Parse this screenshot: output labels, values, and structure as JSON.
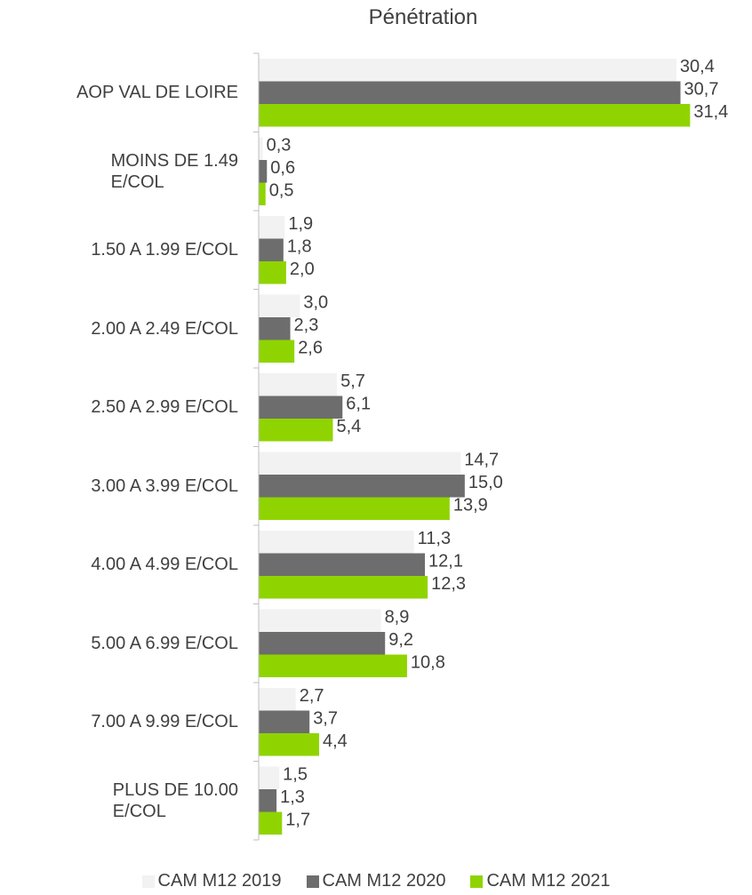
{
  "chart_data": {
    "type": "barh",
    "title": "Pénétration",
    "categories": [
      "AOP VAL DE LOIRE",
      "MOINS DE 1.49\nE/COL",
      "1.50 A 1.99 E/COL",
      "2.00 A 2.49 E/COL",
      "2.50 A 2.99 E/COL",
      "3.00 A 3.99 E/COL",
      "4.00 A 4.99 E/COL",
      "5.00 A 6.99 E/COL",
      "7.00 A 9.99 E/COL",
      "PLUS DE 10.00\nE/COL"
    ],
    "series": [
      {
        "name": "CAM M12 2019",
        "color": "#f2f2f2",
        "values": [
          30.4,
          0.3,
          1.9,
          3.0,
          5.7,
          14.7,
          11.3,
          8.9,
          2.7,
          1.5
        ],
        "value_labels": [
          "30,4",
          "0,3",
          "1,9",
          "3,0",
          "5,7",
          "14,7",
          "11,3",
          "8,9",
          "2,7",
          "1,5"
        ]
      },
      {
        "name": "CAM M12 2020",
        "color": "#6d6d6d",
        "values": [
          30.7,
          0.6,
          1.8,
          2.3,
          6.1,
          15.0,
          12.1,
          9.2,
          3.7,
          1.3
        ],
        "value_labels": [
          "30,7",
          "0,6",
          "1,8",
          "2,3",
          "6,1",
          "15,0",
          "12,1",
          "9,2",
          "3,7",
          "1,3"
        ]
      },
      {
        "name": "CAM M12 2021",
        "color": "#8fd400",
        "values": [
          31.4,
          0.5,
          2.0,
          2.6,
          5.4,
          13.9,
          12.3,
          10.8,
          4.4,
          1.7
        ],
        "value_labels": [
          "31,4",
          "0,5",
          "2,0",
          "2,6",
          "5,4",
          "13,9",
          "12,3",
          "10,8",
          "4,4",
          "1,7"
        ]
      }
    ],
    "xlim": [
      0,
      35
    ],
    "legend": "bottom"
  }
}
